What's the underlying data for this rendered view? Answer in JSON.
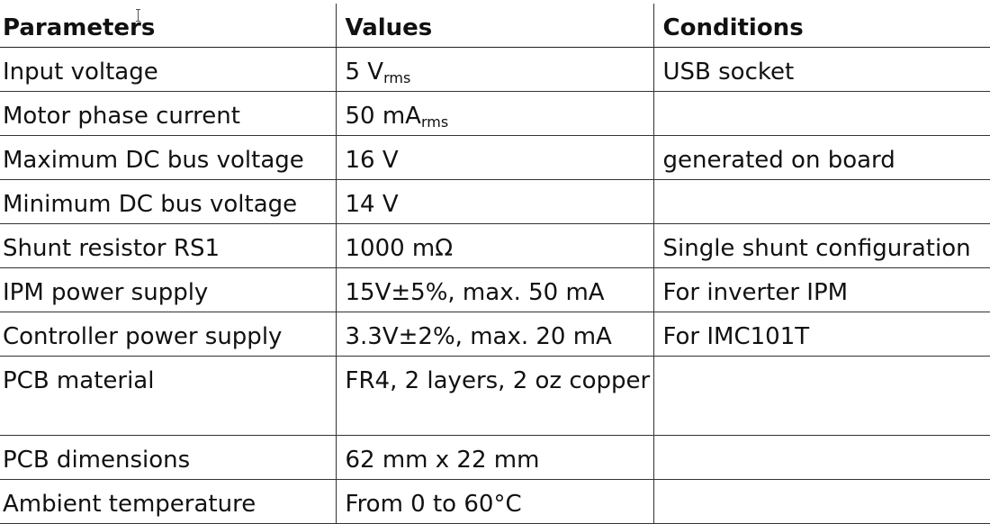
{
  "headers": [
    "Parameters",
    "Values",
    "Conditions"
  ],
  "rows": [
    {
      "param": "Input voltage",
      "value": "5 V",
      "value_sub": "rms",
      "condition": "USB socket"
    },
    {
      "param": "Motor phase current",
      "value": "50 mA",
      "value_sub": "rms",
      "condition": ""
    },
    {
      "param": "Maximum DC bus voltage",
      "value": "16 V",
      "condition": "generated on board"
    },
    {
      "param": "Minimum DC bus voltage",
      "value": "14 V",
      "condition": ""
    },
    {
      "param": "Shunt resistor RS1",
      "value": "1000 mΩ",
      "condition": "Single shunt configuration"
    },
    {
      "param": "IPM power supply",
      "value": "15V±5%, max. 50 mA",
      "condition": "For inverter IPM"
    },
    {
      "param": "Controller power supply",
      "value": "3.3V±2%, max. 20 mA",
      "condition": "For IMC101T"
    },
    {
      "param": "PCB material",
      "value": "FR4, 2 layers, 2 oz copper",
      "condition": ""
    },
    {
      "param": "PCB dimensions",
      "value": "62 mm x 22 mm",
      "condition": ""
    },
    {
      "param": "Ambient temperature",
      "value": "From 0 to 60°C",
      "condition": ""
    }
  ]
}
